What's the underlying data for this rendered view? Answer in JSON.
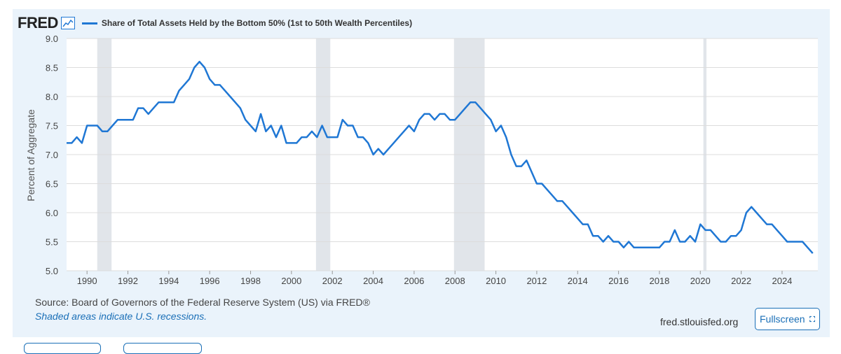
{
  "header": {
    "logo_text": "FRED",
    "series_title": "Share of Total Assets Held by the Bottom 50% (1st to 50th Wealth Percentiles)"
  },
  "footer": {
    "source": "Source: Board of Governors of the Federal Reserve System (US) via FRED®",
    "note": "Shaded areas indicate U.S. recessions.",
    "site": "fred.stlouisfed.org",
    "fullscreen_label": "Fullscreen"
  },
  "colors": {
    "line": "#1f77d4",
    "recession": "#e1e5ea",
    "panel": "#eaf3fb",
    "link": "#1a6fb7"
  },
  "chart_data": {
    "type": "line",
    "ylabel": "Percent of Aggregate",
    "ylim": [
      5.0,
      9.0
    ],
    "yticks": [
      "5.0",
      "5.5",
      "6.0",
      "6.5",
      "7.0",
      "7.5",
      "8.0",
      "8.5",
      "9.0"
    ],
    "xlim": [
      1989.0,
      2025.75
    ],
    "xticks": [
      "1990",
      "1992",
      "1994",
      "1996",
      "1998",
      "2000",
      "2002",
      "2004",
      "2006",
      "2008",
      "2010",
      "2012",
      "2014",
      "2016",
      "2018",
      "2020",
      "2022",
      "2024"
    ],
    "grid": true,
    "recessions": [
      [
        1990.5,
        1991.2
      ],
      [
        2001.2,
        2001.9
      ],
      [
        2007.95,
        2009.45
      ],
      [
        2020.15,
        2020.3
      ]
    ],
    "series": [
      {
        "name": "Share of Total Assets Held by the Bottom 50% (1st to 50th Wealth Percentiles)",
        "points": [
          [
            1989.0,
            7.2
          ],
          [
            1989.25,
            7.2
          ],
          [
            1989.5,
            7.3
          ],
          [
            1989.75,
            7.2
          ],
          [
            1990.0,
            7.5
          ],
          [
            1990.25,
            7.5
          ],
          [
            1990.5,
            7.5
          ],
          [
            1990.75,
            7.4
          ],
          [
            1991.0,
            7.4
          ],
          [
            1991.25,
            7.5
          ],
          [
            1991.5,
            7.6
          ],
          [
            1991.75,
            7.6
          ],
          [
            1992.0,
            7.6
          ],
          [
            1992.25,
            7.6
          ],
          [
            1992.5,
            7.8
          ],
          [
            1992.75,
            7.8
          ],
          [
            1993.0,
            7.7
          ],
          [
            1993.25,
            7.8
          ],
          [
            1993.5,
            7.9
          ],
          [
            1993.75,
            7.9
          ],
          [
            1994.0,
            7.9
          ],
          [
            1994.25,
            7.9
          ],
          [
            1994.5,
            8.1
          ],
          [
            1994.75,
            8.2
          ],
          [
            1995.0,
            8.3
          ],
          [
            1995.25,
            8.5
          ],
          [
            1995.5,
            8.6
          ],
          [
            1995.75,
            8.5
          ],
          [
            1996.0,
            8.3
          ],
          [
            1996.25,
            8.2
          ],
          [
            1996.5,
            8.2
          ],
          [
            1996.75,
            8.1
          ],
          [
            1997.0,
            8.0
          ],
          [
            1997.25,
            7.9
          ],
          [
            1997.5,
            7.8
          ],
          [
            1997.75,
            7.6
          ],
          [
            1998.0,
            7.5
          ],
          [
            1998.25,
            7.4
          ],
          [
            1998.5,
            7.7
          ],
          [
            1998.75,
            7.4
          ],
          [
            1999.0,
            7.5
          ],
          [
            1999.25,
            7.3
          ],
          [
            1999.5,
            7.5
          ],
          [
            1999.75,
            7.2
          ],
          [
            2000.0,
            7.2
          ],
          [
            2000.25,
            7.2
          ],
          [
            2000.5,
            7.3
          ],
          [
            2000.75,
            7.3
          ],
          [
            2001.0,
            7.4
          ],
          [
            2001.25,
            7.3
          ],
          [
            2001.5,
            7.5
          ],
          [
            2001.75,
            7.3
          ],
          [
            2002.0,
            7.3
          ],
          [
            2002.25,
            7.3
          ],
          [
            2002.5,
            7.6
          ],
          [
            2002.75,
            7.5
          ],
          [
            2003.0,
            7.5
          ],
          [
            2003.25,
            7.3
          ],
          [
            2003.5,
            7.3
          ],
          [
            2003.75,
            7.2
          ],
          [
            2004.0,
            7.0
          ],
          [
            2004.25,
            7.1
          ],
          [
            2004.5,
            7.0
          ],
          [
            2004.75,
            7.1
          ],
          [
            2005.0,
            7.2
          ],
          [
            2005.25,
            7.3
          ],
          [
            2005.5,
            7.4
          ],
          [
            2005.75,
            7.5
          ],
          [
            2006.0,
            7.4
          ],
          [
            2006.25,
            7.6
          ],
          [
            2006.5,
            7.7
          ],
          [
            2006.75,
            7.7
          ],
          [
            2007.0,
            7.6
          ],
          [
            2007.25,
            7.7
          ],
          [
            2007.5,
            7.7
          ],
          [
            2007.75,
            7.6
          ],
          [
            2008.0,
            7.6
          ],
          [
            2008.25,
            7.7
          ],
          [
            2008.5,
            7.8
          ],
          [
            2008.75,
            7.9
          ],
          [
            2009.0,
            7.9
          ],
          [
            2009.25,
            7.8
          ],
          [
            2009.5,
            7.7
          ],
          [
            2009.75,
            7.6
          ],
          [
            2010.0,
            7.4
          ],
          [
            2010.25,
            7.5
          ],
          [
            2010.5,
            7.3
          ],
          [
            2010.75,
            7.0
          ],
          [
            2011.0,
            6.8
          ],
          [
            2011.25,
            6.8
          ],
          [
            2011.5,
            6.9
          ],
          [
            2011.75,
            6.7
          ],
          [
            2012.0,
            6.5
          ],
          [
            2012.25,
            6.5
          ],
          [
            2012.5,
            6.4
          ],
          [
            2012.75,
            6.3
          ],
          [
            2013.0,
            6.2
          ],
          [
            2013.25,
            6.2
          ],
          [
            2013.5,
            6.1
          ],
          [
            2013.75,
            6.0
          ],
          [
            2014.0,
            5.9
          ],
          [
            2014.25,
            5.8
          ],
          [
            2014.5,
            5.8
          ],
          [
            2014.75,
            5.6
          ],
          [
            2015.0,
            5.6
          ],
          [
            2015.25,
            5.5
          ],
          [
            2015.5,
            5.6
          ],
          [
            2015.75,
            5.5
          ],
          [
            2016.0,
            5.5
          ],
          [
            2016.25,
            5.4
          ],
          [
            2016.5,
            5.5
          ],
          [
            2016.75,
            5.4
          ],
          [
            2017.0,
            5.4
          ],
          [
            2017.25,
            5.4
          ],
          [
            2017.5,
            5.4
          ],
          [
            2017.75,
            5.4
          ],
          [
            2018.0,
            5.4
          ],
          [
            2018.25,
            5.5
          ],
          [
            2018.5,
            5.5
          ],
          [
            2018.75,
            5.7
          ],
          [
            2019.0,
            5.5
          ],
          [
            2019.25,
            5.5
          ],
          [
            2019.5,
            5.6
          ],
          [
            2019.75,
            5.5
          ],
          [
            2020.0,
            5.8
          ],
          [
            2020.25,
            5.7
          ],
          [
            2020.5,
            5.7
          ],
          [
            2020.75,
            5.6
          ],
          [
            2021.0,
            5.5
          ],
          [
            2021.25,
            5.5
          ],
          [
            2021.5,
            5.6
          ],
          [
            2021.75,
            5.6
          ],
          [
            2022.0,
            5.7
          ],
          [
            2022.25,
            6.0
          ],
          [
            2022.5,
            6.1
          ],
          [
            2022.75,
            6.0
          ],
          [
            2023.0,
            5.9
          ],
          [
            2023.25,
            5.8
          ],
          [
            2023.5,
            5.8
          ],
          [
            2023.75,
            5.7
          ],
          [
            2024.0,
            5.6
          ],
          [
            2024.25,
            5.5
          ],
          [
            2024.5,
            5.5
          ],
          [
            2024.75,
            5.5
          ],
          [
            2025.0,
            5.5
          ],
          [
            2025.25,
            5.4
          ],
          [
            2025.5,
            5.3
          ]
        ]
      }
    ]
  }
}
